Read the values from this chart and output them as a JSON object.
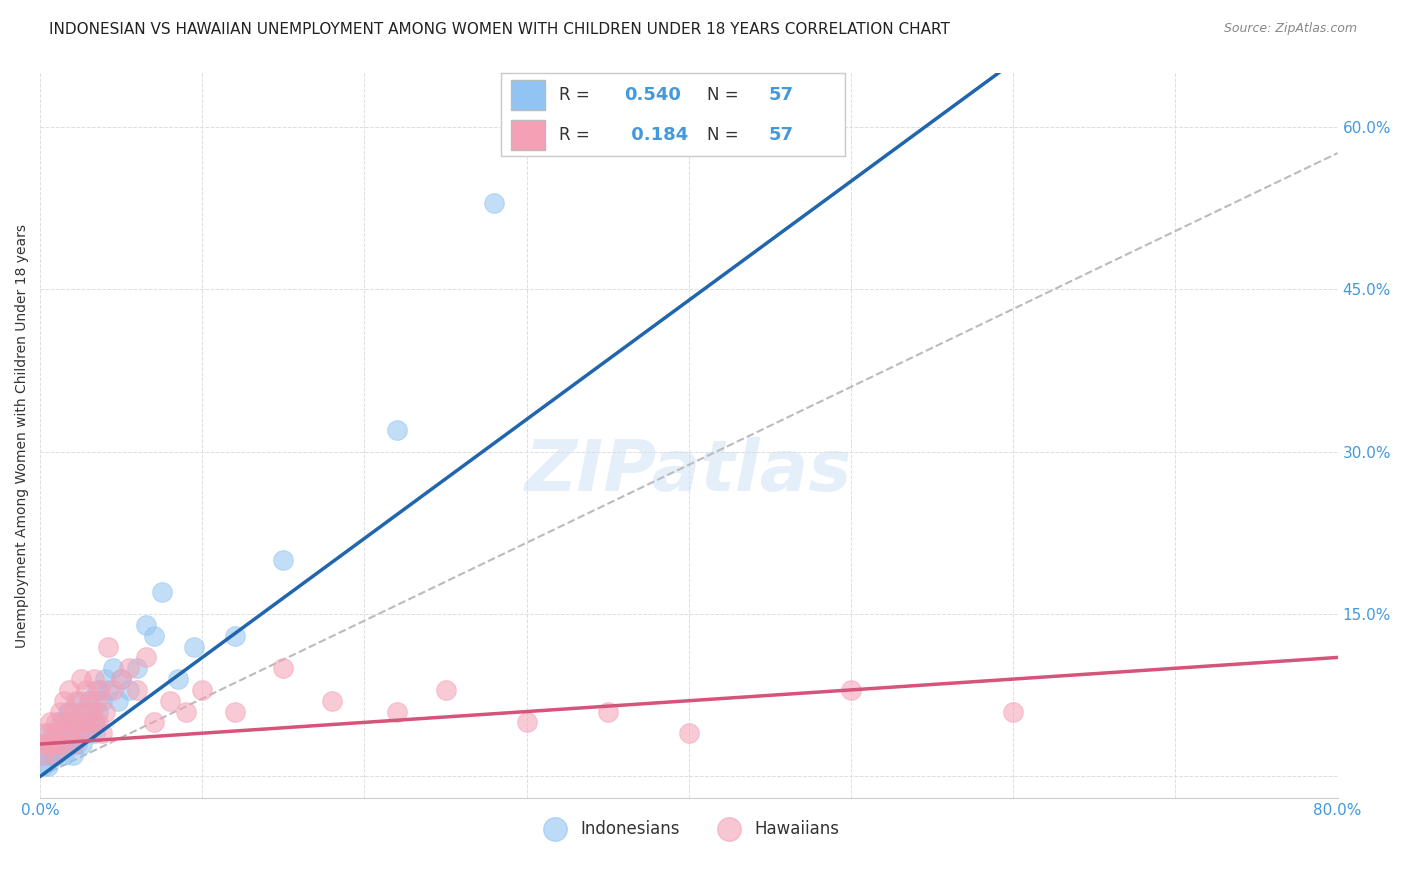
{
  "title": "INDONESIAN VS HAWAIIAN UNEMPLOYMENT AMONG WOMEN WITH CHILDREN UNDER 18 YEARS CORRELATION CHART",
  "source": "Source: ZipAtlas.com",
  "ylabel": "Unemployment Among Women with Children Under 18 years",
  "xlim": [
    0.0,
    0.8
  ],
  "ylim": [
    -0.02,
    0.65
  ],
  "yticks": [
    0.0,
    0.15,
    0.3,
    0.45,
    0.6
  ],
  "ytick_labels": [
    "",
    "15.0%",
    "30.0%",
    "45.0%",
    "60.0%"
  ],
  "xticks": [
    0.0,
    0.1,
    0.2,
    0.3,
    0.4,
    0.5,
    0.6,
    0.7,
    0.8
  ],
  "blue_color": "#91C4F2",
  "pink_color": "#F4A0B5",
  "blue_line_color": "#2166AC",
  "pink_line_color": "#D6537A",
  "dashed_line_color": "#BBBBBB",
  "watermark": "ZIPatlas",
  "bg_color": "#FFFFFF",
  "grid_color": "#DDDDDD",
  "indonesian_x": [
    0.0,
    0.002,
    0.003,
    0.004,
    0.005,
    0.005,
    0.006,
    0.007,
    0.008,
    0.009,
    0.01,
    0.01,
    0.012,
    0.013,
    0.014,
    0.015,
    0.015,
    0.016,
    0.017,
    0.018,
    0.018,
    0.019,
    0.02,
    0.02,
    0.021,
    0.022,
    0.023,
    0.024,
    0.025,
    0.026,
    0.027,
    0.028,
    0.029,
    0.03,
    0.031,
    0.032,
    0.033,
    0.034,
    0.035,
    0.036,
    0.038,
    0.04,
    0.042,
    0.045,
    0.048,
    0.05,
    0.055,
    0.06,
    0.065,
    0.07,
    0.075,
    0.085,
    0.095,
    0.12,
    0.15,
    0.22,
    0.28
  ],
  "indonesian_y": [
    0.02,
    0.01,
    0.03,
    0.02,
    0.04,
    0.01,
    0.03,
    0.02,
    0.03,
    0.02,
    0.04,
    0.02,
    0.03,
    0.05,
    0.03,
    0.05,
    0.02,
    0.04,
    0.06,
    0.06,
    0.03,
    0.04,
    0.05,
    0.02,
    0.04,
    0.05,
    0.03,
    0.07,
    0.05,
    0.03,
    0.04,
    0.06,
    0.04,
    0.07,
    0.05,
    0.06,
    0.05,
    0.04,
    0.08,
    0.06,
    0.07,
    0.09,
    0.08,
    0.1,
    0.07,
    0.09,
    0.08,
    0.1,
    0.14,
    0.13,
    0.17,
    0.09,
    0.12,
    0.13,
    0.2,
    0.32,
    0.53
  ],
  "hawaiian_x": [
    0.0,
    0.002,
    0.003,
    0.005,
    0.006,
    0.007,
    0.008,
    0.009,
    0.01,
    0.011,
    0.012,
    0.013,
    0.014,
    0.015,
    0.016,
    0.017,
    0.018,
    0.019,
    0.02,
    0.021,
    0.022,
    0.023,
    0.024,
    0.025,
    0.026,
    0.027,
    0.028,
    0.029,
    0.03,
    0.032,
    0.033,
    0.034,
    0.035,
    0.036,
    0.037,
    0.038,
    0.04,
    0.042,
    0.045,
    0.05,
    0.055,
    0.06,
    0.065,
    0.07,
    0.08,
    0.09,
    0.1,
    0.12,
    0.15,
    0.18,
    0.22,
    0.25,
    0.3,
    0.35,
    0.4,
    0.5,
    0.6
  ],
  "hawaiian_y": [
    0.03,
    0.02,
    0.04,
    0.03,
    0.05,
    0.03,
    0.04,
    0.02,
    0.05,
    0.03,
    0.06,
    0.04,
    0.03,
    0.07,
    0.05,
    0.04,
    0.08,
    0.05,
    0.06,
    0.03,
    0.07,
    0.05,
    0.04,
    0.09,
    0.06,
    0.04,
    0.08,
    0.05,
    0.07,
    0.06,
    0.09,
    0.05,
    0.07,
    0.05,
    0.08,
    0.04,
    0.06,
    0.12,
    0.08,
    0.09,
    0.1,
    0.08,
    0.11,
    0.05,
    0.07,
    0.06,
    0.08,
    0.06,
    0.1,
    0.07,
    0.06,
    0.08,
    0.05,
    0.06,
    0.04,
    0.08,
    0.06
  ],
  "blue_slope": 1.1,
  "blue_intercept": 0.0,
  "pink_slope": 0.1,
  "pink_intercept": 0.03,
  "dash_slope": 0.72,
  "dash_intercept": 0.0
}
